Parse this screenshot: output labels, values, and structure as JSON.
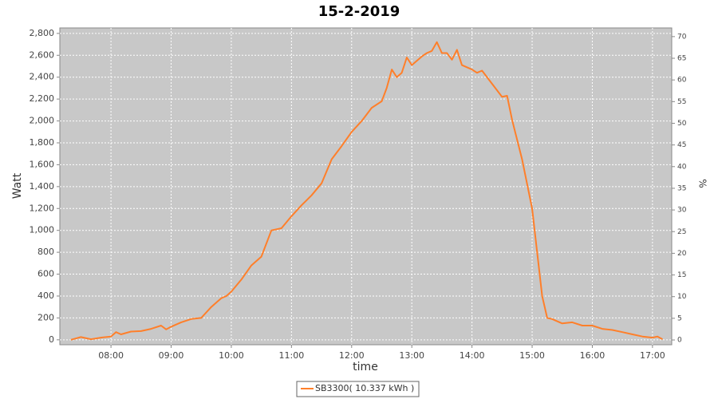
{
  "chart_data": {
    "type": "line",
    "title": "15-2-2019",
    "x_label": "time",
    "y_label": "Watt",
    "y2_label": "%",
    "x": [
      7.333,
      7.5,
      7.667,
      7.833,
      8.0,
      8.083,
      8.167,
      8.333,
      8.5,
      8.667,
      8.833,
      8.917,
      9.0,
      9.167,
      9.333,
      9.5,
      9.667,
      9.833,
      9.917,
      10.0,
      10.167,
      10.333,
      10.5,
      10.667,
      10.833,
      11.0,
      11.167,
      11.333,
      11.5,
      11.667,
      11.833,
      12.0,
      12.167,
      12.333,
      12.5,
      12.583,
      12.667,
      12.75,
      12.833,
      12.917,
      13.0,
      13.167,
      13.25,
      13.333,
      13.417,
      13.5,
      13.583,
      13.667,
      13.75,
      13.833,
      14.0,
      14.083,
      14.167,
      14.333,
      14.5,
      14.583,
      14.667,
      14.833,
      15.0,
      15.083,
      15.167,
      15.25,
      15.333,
      15.5,
      15.667,
      15.833,
      16.0,
      16.167,
      16.333,
      16.5,
      16.667,
      16.833,
      17.0,
      17.083,
      17.167
    ],
    "series": [
      {
        "name": "SB3300( 10.337 kWh )",
        "color": "#ff7f2a",
        "values": [
          0,
          25,
          5,
          20,
          30,
          70,
          50,
          75,
          80,
          100,
          130,
          95,
          120,
          160,
          190,
          200,
          300,
          380,
          400,
          440,
          550,
          680,
          760,
          1000,
          1020,
          1130,
          1230,
          1320,
          1430,
          1650,
          1770,
          1900,
          2000,
          2120,
          2180,
          2300,
          2470,
          2400,
          2440,
          2580,
          2510,
          2590,
          2620,
          2640,
          2720,
          2620,
          2620,
          2560,
          2650,
          2510,
          2470,
          2440,
          2460,
          2340,
          2220,
          2230,
          2010,
          1650,
          1200,
          800,
          400,
          200,
          190,
          150,
          160,
          130,
          130,
          100,
          90,
          70,
          50,
          30,
          20,
          30,
          5
        ]
      }
    ],
    "xlim": [
      7.15,
      17.32
    ],
    "xticks": [
      {
        "value": 8,
        "label": "08:00"
      },
      {
        "value": 9,
        "label": "09:00"
      },
      {
        "value": 10,
        "label": "10:00"
      },
      {
        "value": 11,
        "label": "11:00"
      },
      {
        "value": 12,
        "label": "12:00"
      },
      {
        "value": 13,
        "label": "13:00"
      },
      {
        "value": 14,
        "label": "14:00"
      },
      {
        "value": 15,
        "label": "15:00"
      },
      {
        "value": 16,
        "label": "16:00"
      },
      {
        "value": 17,
        "label": "17:00"
      }
    ],
    "ylim": [
      -45,
      2850
    ],
    "yticks": [
      0,
      200,
      400,
      600,
      800,
      {
        "value": 1000,
        "label": "1,000"
      },
      {
        "value": 1200,
        "label": "1,200"
      },
      {
        "value": 1400,
        "label": "1,400"
      },
      {
        "value": 1600,
        "label": "1,600"
      },
      {
        "value": 1800,
        "label": "1,800"
      },
      {
        "value": 2000,
        "label": "2,000"
      },
      {
        "value": 2200,
        "label": "2,200"
      },
      {
        "value": 2400,
        "label": "2,400"
      },
      {
        "value": 2600,
        "label": "2,600"
      },
      {
        "value": 2800,
        "label": "2,800"
      }
    ],
    "y2lim": [
      -1.1,
      72
    ],
    "y2ticks": [
      0,
      5,
      10,
      15,
      20,
      25,
      30,
      35,
      40,
      45,
      50,
      55,
      60,
      65,
      70
    ],
    "grid": true
  }
}
